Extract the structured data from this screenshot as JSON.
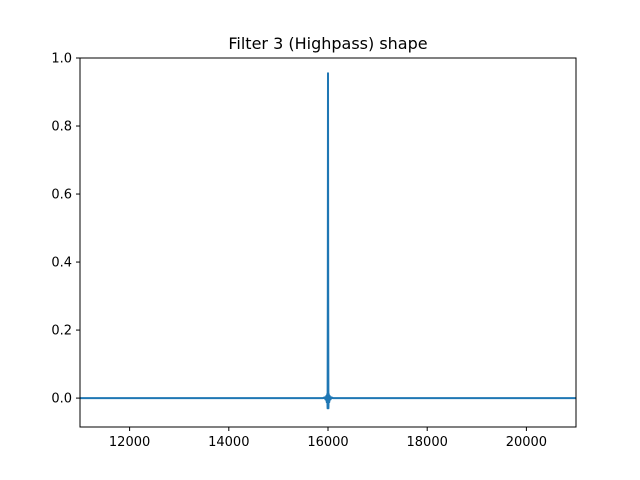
{
  "chart_data": {
    "type": "line",
    "title": "Filter 3 (Highpass) shape",
    "xlabel": "",
    "ylabel": "",
    "xlim": [
      11000,
      21000
    ],
    "ylim": [
      -0.085,
      1.0
    ],
    "xticks": [
      12000,
      14000,
      16000,
      18000,
      20000
    ],
    "xtick_labels": [
      "12000",
      "14000",
      "16000",
      "18000",
      "20000"
    ],
    "yticks": [
      0.0,
      0.2,
      0.4,
      0.6,
      0.8,
      1.0
    ],
    "ytick_labels": [
      "0.0",
      "0.2",
      "0.4",
      "0.6",
      "0.8",
      "1.0"
    ],
    "grid": false,
    "legend": "none",
    "colors": {
      "series": "#1f77b4"
    },
    "series": [
      {
        "x": [
          11000,
          15900,
          15930,
          15950,
          15965,
          15975,
          15985,
          15992,
          15996,
          16000,
          16004,
          16008,
          16015,
          16025,
          16035,
          16050,
          16070,
          16100,
          21000
        ],
        "y": [
          0.0,
          0.0,
          0.002,
          -0.004,
          0.006,
          -0.012,
          0.012,
          -0.03,
          0.3,
          0.955,
          0.3,
          -0.03,
          0.012,
          -0.012,
          0.006,
          -0.004,
          0.002,
          0.0,
          0.0
        ]
      }
    ]
  }
}
